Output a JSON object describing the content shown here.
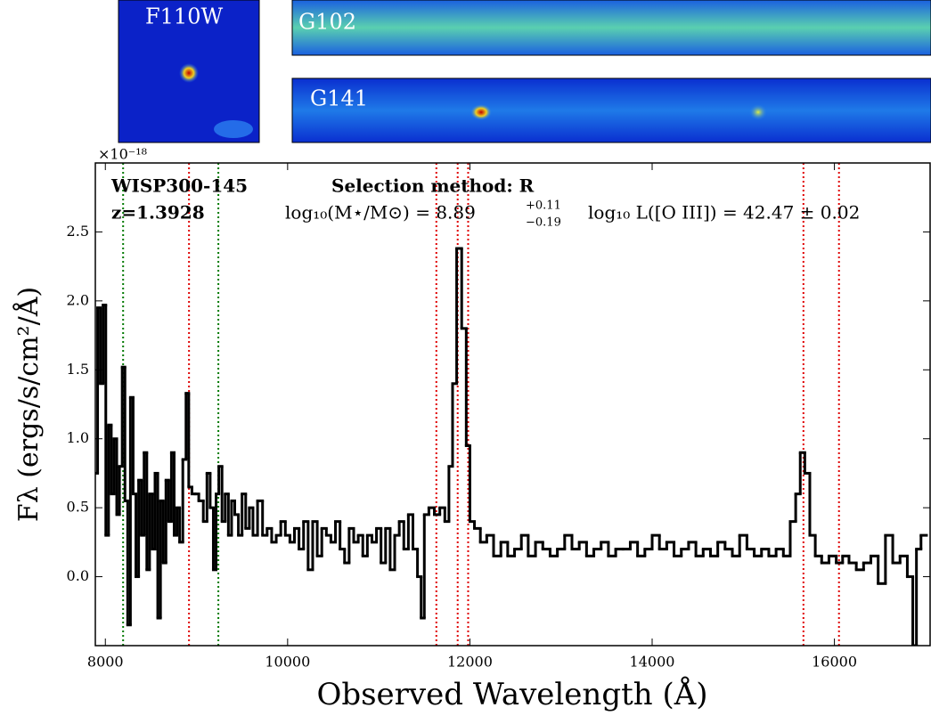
{
  "chart_data": {
    "type": "line",
    "drawstyle": "steps-mid",
    "image_labels": [
      "F110W",
      "G102",
      "G141"
    ],
    "object_id": "WISP300-145",
    "redshift_label": "z=1.3928",
    "selection_label": "Selection method: R",
    "mass_label": "log₁₀(M⋆/M⊙) = 8.89",
    "mass_err_up": "+0.11",
    "mass_err_down": "−0.19",
    "luminosity_label": "log₁₀ L([O III]) = 42.47 ± 0.02",
    "y_multiplier": "×10⁻¹⁸",
    "x_label": "Observed Wavelength (Å)",
    "y_label": "Fλ (ergs/s/cm²/Å)",
    "xlim": [
      7890,
      17050
    ],
    "ylim": [
      -0.5,
      3.0
    ],
    "xticks": [
      8000,
      10000,
      12000,
      14000,
      16000
    ],
    "yticks": [
      {
        "value": 0,
        "label": "0.0"
      },
      0.5,
      {
        "value": 1,
        "label": "1.0"
      },
      1.5,
      {
        "value": 2,
        "label": "2.0"
      },
      2.5
    ],
    "line_markers": [
      {
        "x": 8195,
        "color": "#007a00"
      },
      {
        "x": 9240,
        "color": "#007a00"
      },
      {
        "x": 8918,
        "color": "#e00000"
      },
      {
        "x": 11632,
        "color": "#e00000"
      },
      {
        "x": 11866,
        "color": "#e00000"
      },
      {
        "x": 11981,
        "color": "#e00000"
      },
      {
        "x": 15660,
        "color": "#e00000"
      },
      {
        "x": 16050,
        "color": "#e00000"
      }
    ],
    "series": [
      {
        "color": "#000000",
        "x": [
          7900,
          7930,
          7960,
          7990,
          8020,
          8050,
          8080,
          8110,
          8140,
          8170,
          8200,
          8230,
          8260,
          8290,
          8320,
          8350,
          8380,
          8410,
          8440,
          8470,
          8500,
          8530,
          8560,
          8590,
          8620,
          8650,
          8680,
          8710,
          8740,
          8770,
          8800,
          8830,
          8870,
          8900,
          8930,
          8970,
          9000,
          9050,
          9100,
          9130,
          9170,
          9200,
          9230,
          9260,
          9300,
          9330,
          9370,
          9400,
          9440,
          9480,
          9520,
          9560,
          9600,
          9640,
          9700,
          9750,
          9800,
          9850,
          9900,
          9950,
          10000,
          10050,
          10100,
          10150,
          10200,
          10250,
          10300,
          10350,
          10400,
          10450,
          10500,
          10550,
          10600,
          10650,
          10700,
          10750,
          10800,
          10850,
          10900,
          10950,
          11000,
          11050,
          11100,
          11150,
          11200,
          11250,
          11300,
          11350,
          11400,
          11450,
          11480,
          11520,
          11580,
          11640,
          11700,
          11750,
          11790,
          11830,
          11880,
          11940,
          11980,
          12020,
          12080,
          12150,
          12220,
          12300,
          12380,
          12450,
          12530,
          12600,
          12680,
          12760,
          12840,
          12920,
          13000,
          13080,
          13160,
          13240,
          13320,
          13400,
          13480,
          13560,
          13640,
          13720,
          13800,
          13880,
          13960,
          14040,
          14120,
          14200,
          14280,
          14360,
          14440,
          14520,
          14600,
          14680,
          14760,
          14840,
          14920,
          15000,
          15080,
          15160,
          15240,
          15320,
          15400,
          15480,
          15550,
          15600,
          15650,
          15700,
          15760,
          15820,
          15900,
          15980,
          16060,
          16120,
          16200,
          16280,
          16360,
          16440,
          16520,
          16600,
          16680,
          16760,
          16840,
          16880,
          16920,
          16980
        ],
        "values": [
          0.75,
          1.95,
          1.4,
          1.97,
          0.3,
          1.1,
          0.6,
          1.0,
          0.45,
          0.8,
          1.52,
          0.55,
          -0.35,
          1.3,
          0.6,
          0.0,
          0.7,
          0.3,
          0.9,
          0.05,
          0.6,
          0.2,
          0.75,
          -0.3,
          0.55,
          0.1,
          0.7,
          0.4,
          0.9,
          0.3,
          0.5,
          0.25,
          0.85,
          1.33,
          0.65,
          0.6,
          0.6,
          0.55,
          0.4,
          0.75,
          0.5,
          0.05,
          0.6,
          0.8,
          0.4,
          0.6,
          0.3,
          0.55,
          0.45,
          0.3,
          0.6,
          0.35,
          0.5,
          0.3,
          0.55,
          0.3,
          0.35,
          0.25,
          0.3,
          0.4,
          0.3,
          0.25,
          0.35,
          0.2,
          0.4,
          0.05,
          0.4,
          0.15,
          0.35,
          0.3,
          0.25,
          0.4,
          0.2,
          0.1,
          0.35,
          0.25,
          0.3,
          0.15,
          0.3,
          0.25,
          0.35,
          0.1,
          0.35,
          0.05,
          0.3,
          0.4,
          0.2,
          0.45,
          0.2,
          0.0,
          -0.3,
          0.45,
          0.5,
          0.45,
          0.5,
          0.4,
          0.8,
          1.4,
          2.38,
          1.8,
          0.95,
          0.4,
          0.35,
          0.25,
          0.3,
          0.15,
          0.25,
          0.15,
          0.2,
          0.3,
          0.15,
          0.25,
          0.2,
          0.15,
          0.2,
          0.3,
          0.2,
          0.25,
          0.15,
          0.2,
          0.25,
          0.15,
          0.2,
          0.2,
          0.25,
          0.15,
          0.2,
          0.3,
          0.2,
          0.25,
          0.15,
          0.2,
          0.25,
          0.15,
          0.2,
          0.15,
          0.25,
          0.2,
          0.15,
          0.3,
          0.2,
          0.15,
          0.2,
          0.15,
          0.2,
          0.15,
          0.4,
          0.6,
          0.9,
          0.75,
          0.3,
          0.15,
          0.1,
          0.15,
          0.1,
          0.15,
          0.1,
          0.05,
          0.1,
          0.15,
          -0.05,
          0.3,
          0.1,
          0.15,
          0.0,
          -0.5,
          0.2,
          0.3
        ]
      }
    ]
  }
}
